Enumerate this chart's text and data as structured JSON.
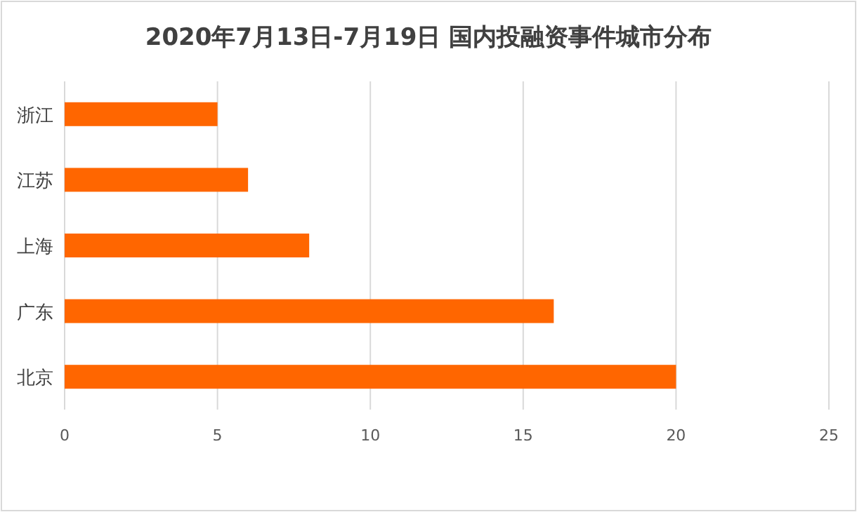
{
  "chart_data": {
    "type": "bar",
    "orientation": "horizontal",
    "title": "2020年7月13日-7月19日 国内投融资事件城市分布",
    "categories": [
      "浙江",
      "江苏",
      "上海",
      "广东",
      "北京"
    ],
    "values": [
      5,
      6,
      8,
      16,
      20
    ],
    "color": "#ff6600",
    "xlim": [
      0,
      25
    ],
    "xticks": [
      0,
      5,
      10,
      15,
      20,
      25
    ],
    "grid": "x"
  }
}
